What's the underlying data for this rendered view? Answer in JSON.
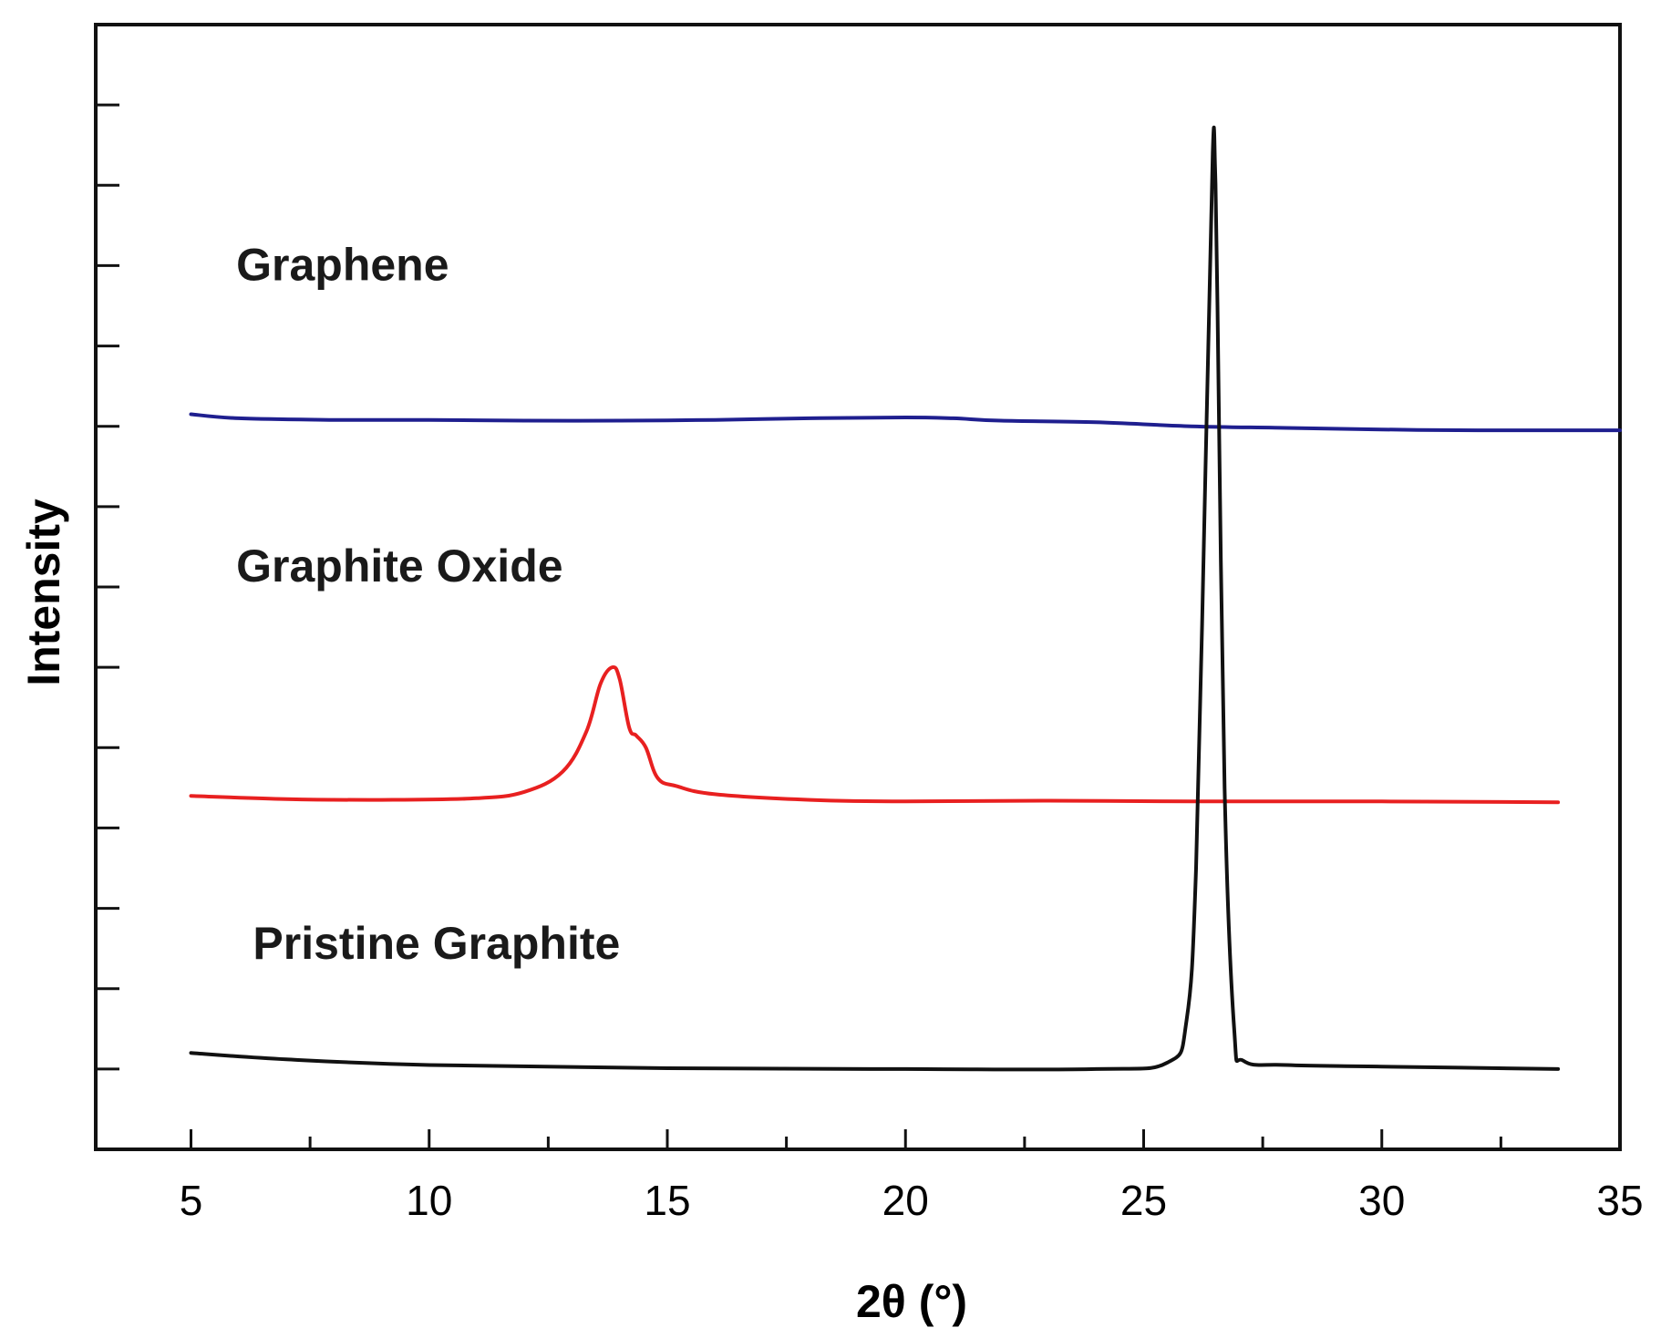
{
  "chart_data": {
    "type": "line",
    "title": "",
    "xlabel": "2θ (°)",
    "ylabel": "Intensity",
    "xlim": [
      3,
      35
    ],
    "ylim": [
      0,
      14
    ],
    "x_ticks": [
      5,
      10,
      15,
      20,
      25,
      30,
      35
    ],
    "x_tick_labels": [
      "5",
      "10",
      "15",
      "20",
      "25",
      "30",
      "35"
    ],
    "y_tick_labels_shown": false,
    "grid": false,
    "legend": "none",
    "series": [
      {
        "name": "Graphene",
        "color": "#1f1f8f",
        "x": [
          5,
          6,
          8,
          10,
          12,
          14,
          16,
          18,
          20,
          21,
          22,
          24,
          26,
          28,
          30,
          32,
          35
        ],
        "y": [
          9.15,
          9.1,
          9.08,
          9.08,
          9.07,
          9.07,
          9.08,
          9.1,
          9.11,
          9.1,
          9.07,
          9.05,
          9.0,
          8.98,
          8.96,
          8.95,
          8.95
        ]
      },
      {
        "name": "Graphite Oxide",
        "color": "#e82020",
        "x": [
          5,
          7,
          9,
          11,
          12,
          12.8,
          13.3,
          13.6,
          13.85,
          14.0,
          14.2,
          14.35,
          14.55,
          14.8,
          15.2,
          16,
          18,
          20,
          23,
          26,
          30,
          33.7
        ],
        "y": [
          4.4,
          4.36,
          4.35,
          4.37,
          4.45,
          4.7,
          5.2,
          5.8,
          6.0,
          5.85,
          5.25,
          5.15,
          5.0,
          4.62,
          4.52,
          4.42,
          4.35,
          4.33,
          4.34,
          4.33,
          4.33,
          4.32
        ]
      },
      {
        "name": "Pristine Graphite",
        "color": "#111111",
        "x": [
          5,
          7,
          10,
          15,
          20,
          24,
          25.5,
          25.9,
          26.1,
          26.3,
          26.45,
          26.5,
          26.55,
          26.7,
          26.9,
          27.1,
          28,
          30,
          33.7
        ],
        "y": [
          1.2,
          1.12,
          1.05,
          1.01,
          1.0,
          1.0,
          1.08,
          1.6,
          3.5,
          8.5,
          12.4,
          12.2,
          10.5,
          4.5,
          1.5,
          1.1,
          1.05,
          1.03,
          1.0
        ]
      }
    ],
    "annotations": [
      {
        "text": "Graphene",
        "series": "Graphene"
      },
      {
        "text": "Graphite Oxide",
        "series": "Graphite Oxide"
      },
      {
        "text": "Pristine Graphite",
        "series": "Pristine Graphite"
      }
    ]
  }
}
